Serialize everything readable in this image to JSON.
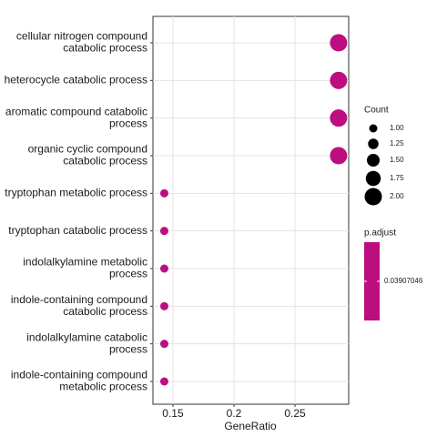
{
  "chart_data": {
    "type": "dot",
    "x_label": "GeneRatio",
    "categories": [
      [
        "cellular nitrogen compound",
        "catabolic process"
      ],
      [
        "heterocycle catabolic process"
      ],
      [
        "aromatic compound catabolic",
        "process"
      ],
      [
        "organic cyclic compound",
        "catabolic process"
      ],
      [
        "tryptophan metabolic process"
      ],
      [
        "tryptophan catabolic process"
      ],
      [
        "indolalkylamine metabolic",
        "process"
      ],
      [
        "indole-containing compound",
        "catabolic process"
      ],
      [
        "indolalkylamine catabolic",
        "process"
      ],
      [
        "indole-containing compound",
        "metabolic process"
      ]
    ],
    "values": [
      0.2857,
      0.2857,
      0.2857,
      0.2857,
      0.1429,
      0.1429,
      0.1429,
      0.1429,
      0.1429,
      0.1429
    ],
    "counts": [
      2,
      2,
      2,
      2,
      1,
      1,
      1,
      1,
      1,
      1
    ],
    "color": "#bd0e80",
    "xlim": [
      0.1336,
      0.294
    ],
    "xticks": [
      0.15,
      0.2,
      0.25
    ],
    "grid": true,
    "size_title": "Count",
    "size_ticks": [
      {
        "value": 1,
        "label": "1.00"
      },
      {
        "value": 1.25,
        "label": "1.25"
      },
      {
        "value": 1.5,
        "label": "1.50"
      },
      {
        "value": 1.75,
        "label": "1.75"
      },
      {
        "value": 2,
        "label": "2.00"
      }
    ],
    "color_title": "p.adjust",
    "color_ticks": [
      0.03907046
    ]
  }
}
